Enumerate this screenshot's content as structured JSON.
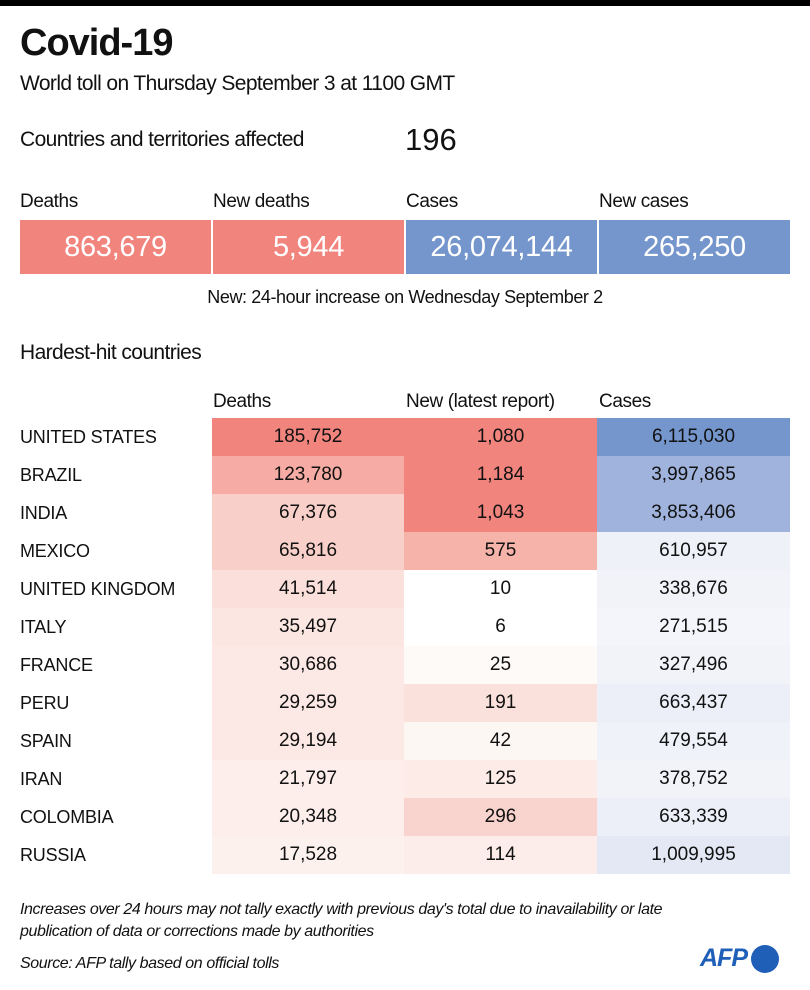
{
  "header": {
    "title": "Covid-19",
    "subtitle": "World toll on Thursday September 3 at 1100 GMT",
    "countries_label": "Countries and territories affected",
    "countries_value": "196"
  },
  "kpis": [
    {
      "label": "Deaths",
      "value": "863,679",
      "color": "#f2847e"
    },
    {
      "label": "New deaths",
      "value": "5,944",
      "color": "#f2847e"
    },
    {
      "label": "Cases",
      "value": "26,074,144",
      "color": "#7496cc"
    },
    {
      "label": "New cases",
      "value": "265,250",
      "color": "#7496cc"
    }
  ],
  "kpi_note": "New: 24-hour increase on Wednesday September 2",
  "table": {
    "title": "Hardest-hit countries",
    "columns": [
      "Deaths",
      "New (latest report)",
      "Cases"
    ],
    "rows": [
      {
        "country": "UNITED STATES",
        "deaths": "185,752",
        "new": "1,080",
        "cases": "6,115,030",
        "c1": "#f2847e",
        "c2": "#f2847e",
        "c3": "#7496cc"
      },
      {
        "country": "BRAZIL",
        "deaths": "123,780",
        "new": "1,184",
        "cases": "3,997,865",
        "c1": "#f6aca4",
        "c2": "#f2847e",
        "c3": "#9fb3dd"
      },
      {
        "country": "INDIA",
        "deaths": "67,376",
        "new": "1,043",
        "cases": "3,853,406",
        "c1": "#f9cfc9",
        "c2": "#f2847e",
        "c3": "#9fb3dd"
      },
      {
        "country": "MEXICO",
        "deaths": "65,816",
        "new": "575",
        "cases": "610,957",
        "c1": "#f9cfc9",
        "c2": "#f6b3aa",
        "c3": "#eef1f8"
      },
      {
        "country": "UNITED KINGDOM",
        "deaths": "41,514",
        "new": "10",
        "cases": "338,676",
        "c1": "#fbdfda",
        "c2": "#ffffff",
        "c3": "#f1f3f9"
      },
      {
        "country": "ITALY",
        "deaths": "35,497",
        "new": "6",
        "cases": "271,515",
        "c1": "#fce6e2",
        "c2": "#ffffff",
        "c3": "#f3f5fa"
      },
      {
        "country": "FRANCE",
        "deaths": "30,686",
        "new": "25",
        "cases": "327,496",
        "c1": "#fce8e4",
        "c2": "#fefaf8",
        "c3": "#f1f3f9"
      },
      {
        "country": "PERU",
        "deaths": "29,259",
        "new": "191",
        "cases": "663,437",
        "c1": "#fce8e4",
        "c2": "#fbe1dc",
        "c3": "#eceff8"
      },
      {
        "country": "SPAIN",
        "deaths": "29,194",
        "new": "42",
        "cases": "479,554",
        "c1": "#fce8e4",
        "c2": "#fdf7f4",
        "c3": "#eff2f9"
      },
      {
        "country": "IRAN",
        "deaths": "21,797",
        "new": "125",
        "cases": "378,752",
        "c1": "#fdeeeb",
        "c2": "#fcebe7",
        "c3": "#f1f3f9"
      },
      {
        "country": "COLOMBIA",
        "deaths": "20,348",
        "new": "296",
        "cases": "633,339",
        "c1": "#fdeeeb",
        "c2": "#f9d4ce",
        "c3": "#eceff8"
      },
      {
        "country": "RUSSIA",
        "deaths": "17,528",
        "new": "114",
        "cases": "1,009,995",
        "c1": "#fdf1ee",
        "c2": "#fcedea",
        "c3": "#e3e8f4"
      }
    ]
  },
  "footer": {
    "note": "Increases over 24 hours may not tally exactly with previous day's total due to inavailability or late publication of data or corrections made by authorities",
    "source": "Source: AFP tally based on official tolls",
    "logo": "AFP"
  }
}
